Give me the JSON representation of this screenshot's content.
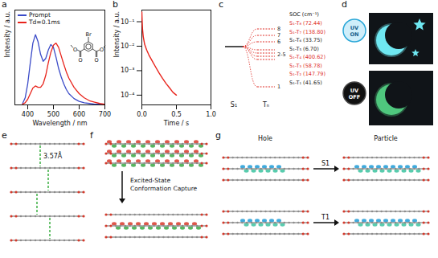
{
  "panel_labels": [
    "a",
    "b",
    "c",
    "d",
    "e",
    "f",
    "g"
  ],
  "chart_data": [
    {
      "type": "line",
      "x_label": "Wavelength / nm",
      "y_label": "Intensity / a.u.",
      "x": [
        380,
        390,
        400,
        410,
        420,
        430,
        440,
        450,
        460,
        470,
        480,
        490,
        500,
        510,
        520,
        530,
        540,
        550,
        560,
        580,
        600,
        620,
        640,
        660,
        680,
        700
      ],
      "series": [
        {
          "name": "Prompt",
          "color": "#3b4bc8",
          "values": [
            0.02,
            0.1,
            0.3,
            0.6,
            0.88,
            1.0,
            0.9,
            0.72,
            0.62,
            0.66,
            0.78,
            0.86,
            0.82,
            0.68,
            0.52,
            0.4,
            0.3,
            0.22,
            0.16,
            0.09,
            0.05,
            0.03,
            0.02,
            0.01,
            0.01,
            0.0
          ]
        },
        {
          "name": "Td=0.1ms",
          "color": "#e8241c",
          "values": [
            0.01,
            0.03,
            0.08,
            0.16,
            0.24,
            0.27,
            0.25,
            0.25,
            0.3,
            0.42,
            0.6,
            0.75,
            0.85,
            0.88,
            0.82,
            0.7,
            0.58,
            0.47,
            0.38,
            0.25,
            0.16,
            0.1,
            0.06,
            0.04,
            0.02,
            0.01
          ]
        }
      ],
      "xlim": [
        350,
        700
      ],
      "xticks": [
        400,
        500,
        600,
        700
      ],
      "ylim": [
        0,
        1.35
      ],
      "tick_labels": "x",
      "legend": "top-left",
      "annotations": [
        "Br",
        "O",
        "O",
        "O",
        "O"
      ]
    },
    {
      "type": "line",
      "x_label": "Time / s",
      "y_label": "Intensity / a.u.",
      "x": [
        0,
        0.005,
        0.01,
        0.02,
        0.04,
        0.07,
        0.1,
        0.15,
        0.2,
        0.25,
        0.3,
        0.35,
        0.4,
        0.45,
        0.5
      ],
      "values": [
        0.25,
        0.1,
        0.05,
        0.025,
        0.012,
        0.007,
        0.0045,
        0.0025,
        0.0014,
        0.0008,
        0.00048,
        0.0003,
        0.0002,
        0.00013,
        0.0001
      ],
      "color": "#e8241c",
      "xlim": [
        0,
        1
      ],
      "xticks": [
        {
          "value": 0,
          "label": "0.0"
        },
        {
          "value": 0.5,
          "label": "0.5"
        },
        {
          "value": 1,
          "label": "1.0"
        }
      ],
      "ylim": [
        4e-05,
        0.3
      ],
      "yticks": [
        {
          "value": 0.1,
          "label": "10⁻¹"
        },
        {
          "value": 0.01,
          "label": "10⁻²"
        },
        {
          "value": 0.001,
          "label": "10⁻³"
        },
        {
          "value": 0.0001,
          "label": "10⁻⁴"
        }
      ],
      "log": "y"
    }
  ],
  "diagrams": {
    "c": {
      "states": [
        "S₁",
        "Tₙ"
      ],
      "levels": [
        "1",
        "2-5",
        "6",
        "7",
        "8"
      ],
      "soc_title": "SOC (cm⁻¹)",
      "soc": [
        {
          "label": "S₁-T₈ (72.44)",
          "color": "#e0302a"
        },
        {
          "label": "S₁-T₇ (138.80)",
          "color": "#e0302a"
        },
        {
          "label": "S₁-T₆ (33.75)",
          "color": "#222222"
        },
        {
          "label": "S₁-T₅ (6.70)",
          "color": "#222222"
        },
        {
          "label": "S₁-T₄ (400.62)",
          "color": "#e0302a"
        },
        {
          "label": "S₁-T₃ (58.78)",
          "color": "#e0302a"
        },
        {
          "label": "S₁-T₂ (147.79)",
          "color": "#e0302a"
        },
        {
          "label": "S₁-T₁ (41.65)",
          "color": "#222222"
        }
      ]
    },
    "d": {
      "on": "UV ON",
      "off": "UV OFF"
    },
    "e": {
      "distance": "3.57Å"
    },
    "f": {
      "caption": "Excited-State Conformation Capture"
    },
    "g": {
      "columns": [
        "Hole",
        "Particle"
      ],
      "rows": [
        "S1",
        "T1"
      ]
    }
  }
}
